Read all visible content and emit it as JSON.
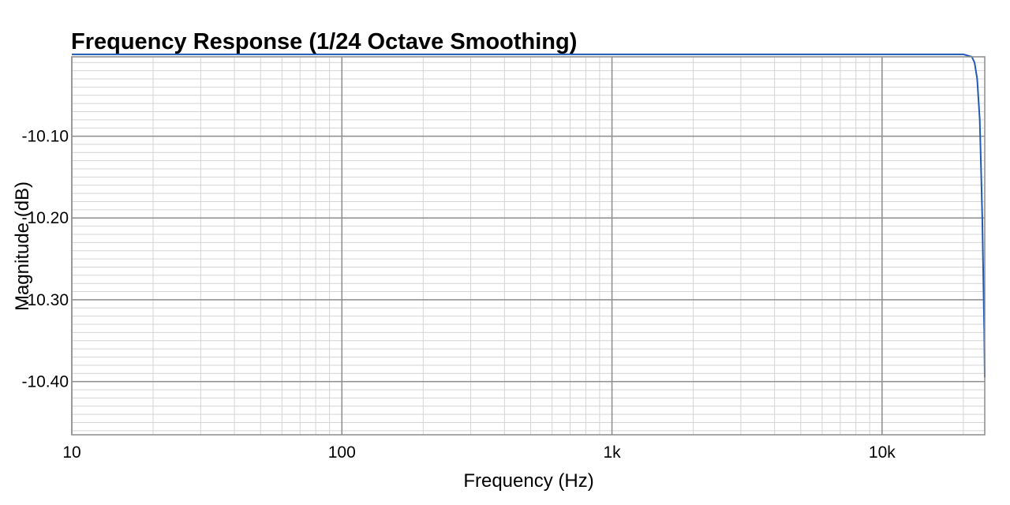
{
  "chart_data": {
    "type": "line",
    "title": "Frequency Response (1/24 Octave Smoothing)",
    "xlabel": "Frequency (Hz)",
    "ylabel": "Magnitude (dB)",
    "x_scale": "log",
    "xlim": [
      10,
      24000
    ],
    "ylim": [
      -10.465,
      -10.003
    ],
    "x_ticks": [
      {
        "value": 10,
        "label": "10"
      },
      {
        "value": 100,
        "label": "100"
      },
      {
        "value": 1000,
        "label": "1k"
      },
      {
        "value": 10000,
        "label": "10k"
      }
    ],
    "y_ticks": [
      {
        "value": -10.1,
        "label": "-10.10"
      },
      {
        "value": -10.2,
        "label": "-10.20"
      },
      {
        "value": -10.3,
        "label": "-10.30"
      },
      {
        "value": -10.4,
        "label": "-10.40"
      }
    ],
    "grid": true,
    "colors": {
      "series": "#1f5bb5",
      "major_grid": "#8c8c8c",
      "minor_grid": "#d4d4d4",
      "frame": "#8c8c8c"
    },
    "series": [
      {
        "x": [
          10,
          20000,
          21500,
          22000,
          22500,
          23000,
          23300,
          23500,
          23700,
          23900,
          24000
        ],
        "y": [
          -10.0,
          -10.0,
          -10.003,
          -10.01,
          -10.03,
          -10.08,
          -10.15,
          -10.2,
          -10.27,
          -10.34,
          -10.395
        ]
      }
    ]
  }
}
